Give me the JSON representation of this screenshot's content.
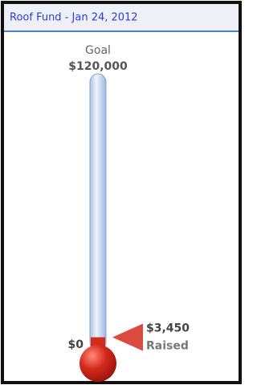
{
  "chart_data": {
    "type": "thermometer",
    "title": "Roof Fund - Jan 24, 2012",
    "goal_caption": "Goal",
    "ylim": [
      0,
      120000
    ],
    "yticks": [
      {
        "value": 0,
        "label": "$0"
      },
      {
        "value": 120000,
        "label": "$120,000"
      }
    ],
    "series": [
      {
        "name": "Raised",
        "color": "#d52a1c",
        "values": [
          3450
        ],
        "value_labels": [
          "$3,450"
        ]
      }
    ]
  }
}
